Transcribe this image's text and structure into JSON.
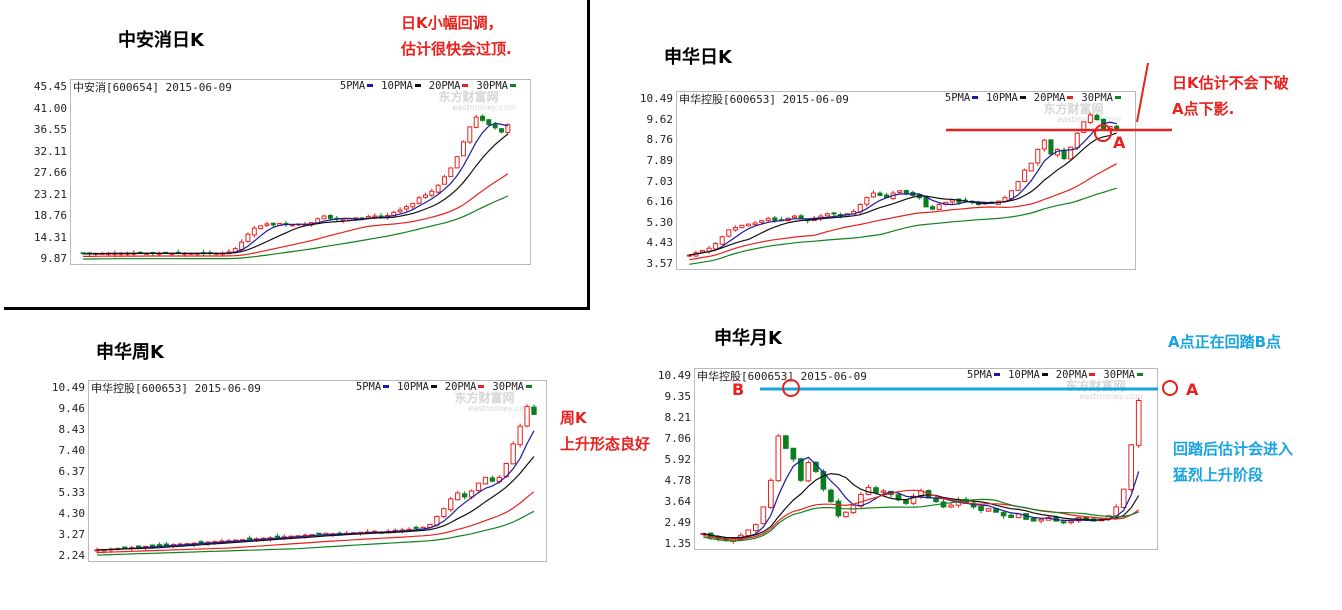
{
  "chart_data": [
    {
      "type": "candlestick",
      "title": "中安消日K",
      "header": "中安消[600654] 2015-06-09",
      "legend": [
        "5PMA",
        "10PMA",
        "20PMA",
        "30PMA"
      ],
      "yticks": [
        "45.45",
        "41.00",
        "36.55",
        "32.11",
        "27.66",
        "23.21",
        "18.76",
        "14.31",
        "9.87"
      ],
      "ylim": [
        9.87,
        45.45
      ],
      "grid": false,
      "close": [
        11.2,
        11.2,
        11.3,
        11.3,
        11.3,
        11.3,
        11.3,
        11.3,
        11.3,
        11.3,
        11.3,
        11.3,
        11.3,
        11.3,
        11.3,
        11.3,
        11.3,
        11.3,
        11.3,
        11.3,
        11.3,
        11.3,
        11.3,
        11.6,
        12.3,
        13.7,
        15.4,
        16.7,
        17.2,
        17.6,
        17.4,
        17.7,
        17.5,
        17.4,
        17.6,
        17.5,
        17.9,
        18.7,
        19.3,
        18.8,
        18.6,
        18.5,
        18.7,
        18.9,
        18.7,
        19.2,
        19.3,
        19.1,
        19.4,
        20.1,
        20.6,
        21.3,
        22.0,
        23.2,
        23.8,
        24.6,
        25.9,
        27.7,
        29.6,
        32.0,
        35.2,
        38.4,
        40.5,
        39.8,
        38.9,
        38.2,
        37.3,
        38.9
      ]
    },
    {
      "type": "candlestick",
      "title": "申华日K",
      "header": "申华控股[600653] 2015-06-09",
      "legend": [
        "5PMA",
        "10PMA",
        "20PMA",
        "30PMA"
      ],
      "yticks": [
        "10.49",
        "9.62",
        "8.76",
        "7.89",
        "7.03",
        "6.16",
        "5.30",
        "4.43",
        "3.57"
      ],
      "ylim": [
        3.57,
        10.49
      ],
      "grid": false,
      "close": [
        4.0,
        4.1,
        4.2,
        4.3,
        4.5,
        4.8,
        5.1,
        5.2,
        5.3,
        5.35,
        5.4,
        5.5,
        5.6,
        5.5,
        5.5,
        5.6,
        5.7,
        5.6,
        5.5,
        5.6,
        5.7,
        5.8,
        5.8,
        5.7,
        5.8,
        5.9,
        6.2,
        6.5,
        6.7,
        6.6,
        6.5,
        6.7,
        6.8,
        6.7,
        6.6,
        6.5,
        6.1,
        6.0,
        6.2,
        6.3,
        6.4,
        6.3,
        6.35,
        6.3,
        6.2,
        6.3,
        6.25,
        6.35,
        6.5,
        6.8,
        7.2,
        7.7,
        8.0,
        8.6,
        9.0,
        8.4,
        8.6,
        8.2,
        8.7,
        9.3,
        9.8,
        10.1,
        9.9,
        9.5,
        9.6,
        9.5
      ]
    },
    {
      "type": "candlestick",
      "title": "申华周K",
      "header": "申华控股[600653] 2015-06-09",
      "legend": [
        "5PMA",
        "10PMA",
        "20PMA",
        "30PMA"
      ],
      "yticks": [
        "10.49",
        "9.46",
        "8.43",
        "7.40",
        "6.37",
        "5.33",
        "4.30",
        "3.27",
        "2.24"
      ],
      "ylim": [
        2.24,
        10.49
      ],
      "grid": false,
      "close": [
        2.6,
        2.62,
        2.65,
        2.68,
        2.7,
        2.72,
        2.75,
        2.78,
        2.8,
        2.82,
        2.85,
        2.87,
        2.9,
        2.92,
        2.95,
        2.97,
        3.0,
        3.02,
        3.05,
        3.07,
        3.1,
        3.12,
        3.15,
        3.17,
        3.2,
        3.22,
        3.25,
        3.27,
        3.3,
        3.32,
        3.35,
        3.38,
        3.4,
        3.45,
        3.42,
        3.4,
        3.45,
        3.48,
        3.5,
        3.52,
        3.55,
        3.5,
        3.55,
        3.6,
        3.62,
        3.65,
        3.7,
        3.75,
        3.9,
        4.3,
        4.7,
        5.2,
        5.5,
        5.3,
        5.6,
        6.0,
        6.3,
        6.1,
        6.3,
        7.0,
        8.0,
        8.9,
        9.9,
        9.5
      ]
    },
    {
      "type": "candlestick",
      "title": "申华月K",
      "header": "申华控股[600653] 2015-06-09",
      "legend": [
        "5PMA",
        "10PMA",
        "20PMA",
        "30PMA"
      ],
      "yticks": [
        "10.49",
        "9.35",
        "8.21",
        "7.06",
        "5.92",
        "4.78",
        "3.64",
        "2.49",
        "1.35"
      ],
      "ylim": [
        1.35,
        10.49
      ],
      "grid": false,
      "close": [
        2.0,
        1.8,
        1.7,
        1.6,
        1.7,
        1.9,
        2.2,
        2.5,
        3.5,
        5.0,
        7.5,
        6.8,
        6.2,
        5.0,
        6.0,
        5.5,
        4.5,
        3.8,
        3.0,
        3.2,
        3.6,
        4.2,
        4.6,
        4.3,
        4.4,
        4.2,
        3.9,
        3.7,
        4.1,
        4.4,
        4.0,
        3.8,
        3.5,
        3.6,
        3.9,
        3.7,
        3.5,
        3.3,
        3.4,
        3.2,
        3.0,
        2.9,
        3.1,
        2.8,
        2.7,
        2.8,
        2.9,
        2.7,
        2.6,
        2.7,
        2.9,
        2.8,
        2.7,
        2.8,
        3.0,
        3.5,
        4.5,
        7.0,
        9.5
      ]
    }
  ],
  "ma_colors": {
    "5PMA": "#1a1aa0",
    "10PMA": "#111111",
    "20PMA": "#e8211d",
    "30PMA": "#12811e"
  },
  "candle_colors": {
    "up": "#e8211d",
    "down": "#0b7e1f"
  },
  "watermark": {
    "cn": "东方财富网",
    "en": "eastmoney.com"
  },
  "annotations": {
    "zax_note": [
      "日K小幅回调，",
      "估计很快会过顶."
    ],
    "shd_note": [
      "日K估计不会下破",
      "A点下影."
    ],
    "shw_note": [
      "周K",
      "上升形态良好"
    ],
    "shm_note_top": "A点正在回踏B点",
    "shm_note_bottom": [
      "回踏后估计会进入",
      "猛烈上升阶段"
    ],
    "label_a": "A",
    "label_b": "B",
    "colors": {
      "red": "#e8211d",
      "blue": "#17a4e0"
    }
  }
}
